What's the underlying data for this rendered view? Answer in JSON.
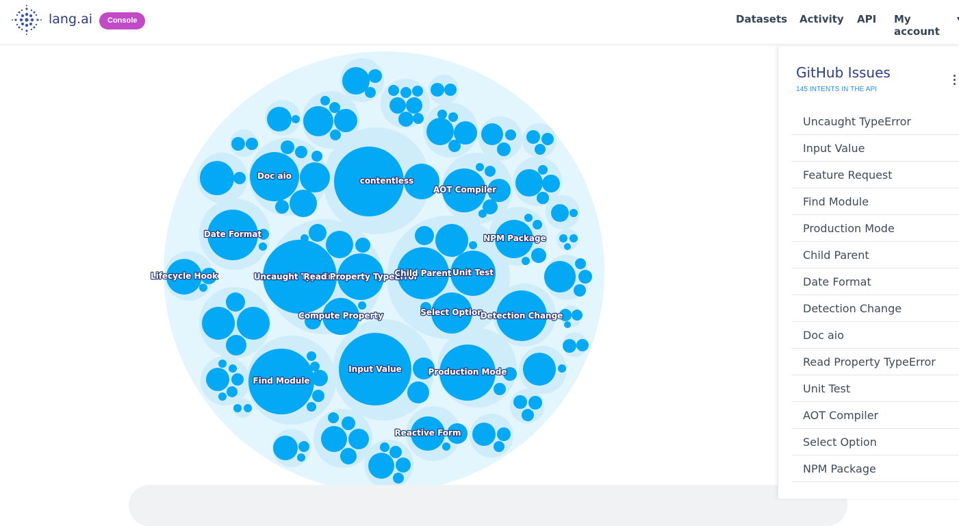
{
  "header": {
    "brand": "lang.ai",
    "badge": "Console",
    "nav": [
      "Datasets",
      "Activity",
      "API",
      "My account"
    ]
  },
  "panel": {
    "title": "GitHub Issues",
    "subtitle": "145 INTENTS IN THE API",
    "intents": [
      "Uncaught TypeError",
      "Input Value",
      "Feature Request",
      "Find Module",
      "Production Mode",
      "Child Parent",
      "Date Format",
      "Detection Change",
      "Doc aio",
      "Read Property TypeError",
      "Unit Test",
      "AOT Compiler",
      "Select Option",
      "NPM Package"
    ]
  },
  "bubble_labels": {
    "contentless": "contentless",
    "doc_aio": "Doc aio",
    "aot_compiler": "AOT Compiler",
    "date_format": "Date Format",
    "npm_package": "NPM Package",
    "lifecycle_hook": "Lifecycle Hook",
    "uncaught": "Uncaught TypeError",
    "read_property": "Read Property TypeError",
    "child_parent": "Child Parent",
    "unit_test": "Unit Test",
    "compute_property": "Compute Property",
    "select_option": "Select Option",
    "detection_change": "Detection Change",
    "find_module": "Find Module",
    "input_value": "Input Value",
    "production_mode": "Production Mode",
    "reactive_form": "Reactive Form"
  },
  "colors": {
    "accent": "#2c3a8a",
    "badge": "#c24ac7",
    "bubble": "#03a9f4",
    "bubble_group": "#cfecfa",
    "bubble_outer": "#e3f5fd",
    "link": "#1a8cff"
  },
  "icons": {
    "logo": "dot-cluster-logo",
    "menu": "kebab-menu-icon"
  }
}
